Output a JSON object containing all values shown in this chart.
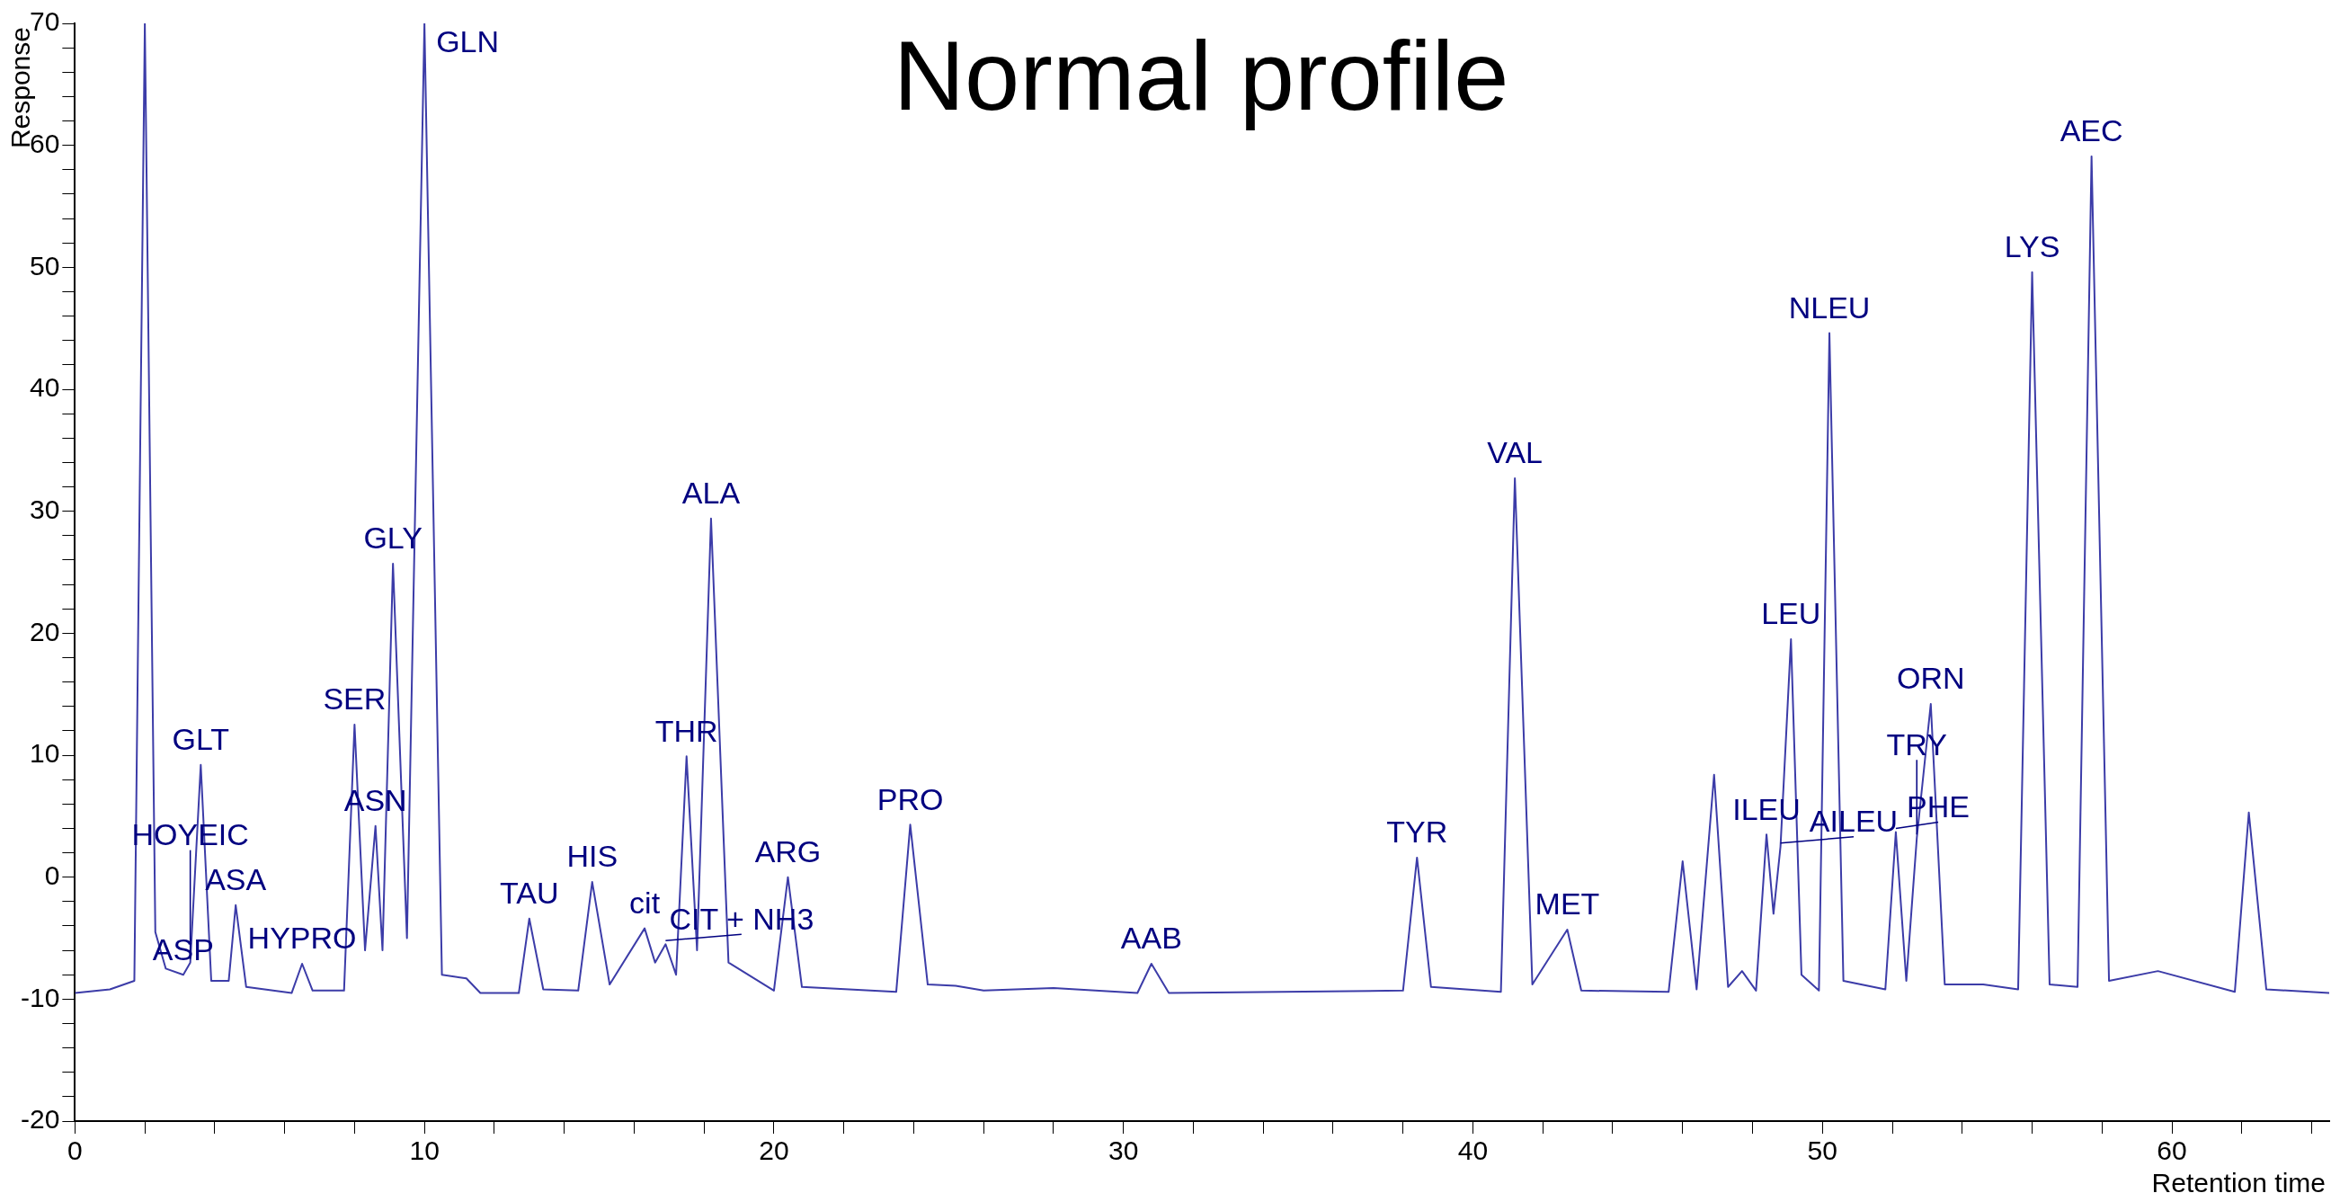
{
  "chart_data": {
    "type": "line",
    "title": "Normal profile",
    "xlabel": "Retention time",
    "ylabel": "Response",
    "xlim": [
      0,
      64.5
    ],
    "ylim": [
      -20,
      70
    ],
    "xticks": [
      0,
      {
        "value": 2,
        "label": null
      },
      {
        "value": 4,
        "label": null
      },
      {
        "value": 6,
        "label": null
      },
      {
        "value": 8,
        "label": null
      },
      10,
      {
        "value": 12,
        "label": null
      },
      {
        "value": 14,
        "label": null
      },
      {
        "value": 16,
        "label": null
      },
      {
        "value": 18,
        "label": null
      },
      20,
      {
        "value": 22,
        "label": null
      },
      {
        "value": 24,
        "label": null
      },
      {
        "value": 26,
        "label": null
      },
      {
        "value": 28,
        "label": null
      },
      30,
      {
        "value": 32,
        "label": null
      },
      {
        "value": 34,
        "label": null
      },
      {
        "value": 36,
        "label": null
      },
      {
        "value": 38,
        "label": null
      },
      40,
      {
        "value": 42,
        "label": null
      },
      {
        "value": 44,
        "label": null
      },
      {
        "value": 46,
        "label": null
      },
      {
        "value": 48,
        "label": null
      },
      50,
      {
        "value": 52,
        "label": null
      },
      {
        "value": 54,
        "label": null
      },
      {
        "value": 56,
        "label": null
      },
      {
        "value": 58,
        "label": null
      },
      60,
      {
        "value": 62,
        "label": null
      },
      {
        "value": 64,
        "label": null
      }
    ],
    "yticks": [
      -20,
      {
        "value": -18,
        "label": null
      },
      {
        "value": -16,
        "label": null
      },
      {
        "value": -14,
        "label": null
      },
      {
        "value": -12,
        "label": null
      },
      -10,
      {
        "value": -8,
        "label": null
      },
      {
        "value": -6,
        "label": null
      },
      {
        "value": -4,
        "label": null
      },
      {
        "value": -2,
        "label": null
      },
      0,
      {
        "value": 2,
        "label": null
      },
      {
        "value": 4,
        "label": null
      },
      {
        "value": 6,
        "label": null
      },
      {
        "value": 8,
        "label": null
      },
      10,
      {
        "value": 12,
        "label": null
      },
      {
        "value": 14,
        "label": null
      },
      {
        "value": 16,
        "label": null
      },
      {
        "value": 18,
        "label": null
      },
      20,
      {
        "value": 22,
        "label": null
      },
      {
        "value": 24,
        "label": null
      },
      {
        "value": 26,
        "label": null
      },
      {
        "value": 28,
        "label": null
      },
      30,
      {
        "value": 32,
        "label": null
      },
      {
        "value": 34,
        "label": null
      },
      {
        "value": 36,
        "label": null
      },
      {
        "value": 38,
        "label": null
      },
      40,
      {
        "value": 42,
        "label": null
      },
      {
        "value": 44,
        "label": null
      },
      {
        "value": 46,
        "label": null
      },
      {
        "value": 48,
        "label": null
      },
      50,
      {
        "value": 52,
        "label": null
      },
      {
        "value": 54,
        "label": null
      },
      {
        "value": 56,
        "label": null
      },
      {
        "value": 58,
        "label": null
      },
      60,
      {
        "value": 62,
        "label": null
      },
      {
        "value": 64,
        "label": null
      },
      {
        "value": 66,
        "label": null
      },
      {
        "value": 68,
        "label": null
      },
      70
    ],
    "grid": false,
    "legend": false,
    "marker": "none",
    "line_style": "solid",
    "series": [
      {
        "color": "#3c3ca8",
        "x": [
          0,
          1.0,
          1.7,
          2.0,
          2.3,
          2.6,
          3.1,
          3.3,
          3.6,
          3.9,
          4.4,
          4.6,
          4.9,
          6.2,
          6.5,
          6.8,
          7.7,
          8.0,
          8.3,
          8.6,
          8.8,
          9.1,
          9.5,
          10.0,
          10.5,
          11.2,
          11.6,
          12.7,
          13.0,
          13.4,
          14.4,
          14.8,
          15.3,
          16.3,
          16.6,
          16.9,
          17.2,
          17.5,
          17.8,
          18.2,
          18.7,
          20.0,
          20.4,
          20.8,
          23.5,
          23.9,
          24.4,
          25.2,
          26.0,
          28.0,
          30.4,
          30.8,
          31.3,
          38.0,
          38.4,
          38.8,
          40.8,
          41.2,
          41.7,
          42.7,
          43.1,
          45.6,
          46.0,
          46.4,
          46.9,
          47.3,
          47.7,
          48.1,
          48.4,
          48.6,
          48.8,
          49.1,
          49.4,
          49.9,
          50.2,
          50.6,
          51.8,
          52.1,
          52.4,
          52.7,
          53.1,
          53.5,
          54.6,
          55.6,
          56.0,
          56.5,
          57.3,
          57.7,
          58.2,
          59.6,
          61.8,
          62.2,
          62.7,
          64.5
        ],
        "values": [
          -9.5,
          -9.2,
          -8.5,
          70,
          -4.5,
          -7.5,
          -8.0,
          -7.0,
          9.2,
          -8.5,
          -8.5,
          -2.3,
          -9.0,
          -9.5,
          -7.1,
          -9.3,
          -9.3,
          12.5,
          -6,
          4.2,
          -6,
          25.7,
          -5,
          70,
          -8,
          -8.3,
          -9.5,
          -9.5,
          -3.4,
          -9.2,
          -9.3,
          -0.4,
          -8.8,
          -4.2,
          -7,
          -5.5,
          -8,
          9.9,
          -6,
          29.4,
          -7,
          -9.3,
          0,
          -9.0,
          -9.4,
          4.3,
          -8.8,
          -8.9,
          -9.3,
          -9.1,
          -9.5,
          -7.1,
          -9.5,
          -9.3,
          1.6,
          -9.0,
          -9.4,
          32.7,
          -8.8,
          -4.3,
          -9.3,
          -9.4,
          1.3,
          -9.2,
          8.4,
          -9.0,
          -7.7,
          -9.3,
          3.5,
          -3,
          2.5,
          19.5,
          -8,
          -9.3,
          44.6,
          -8.5,
          -9.2,
          3.7,
          -8.5,
          3.2,
          14.2,
          -8.8,
          -8.8,
          -9.2,
          49.6,
          -8.8,
          -9.0,
          59.1,
          -8.5,
          -7.7,
          -9.4,
          5.3,
          -9.2,
          -9.5
        ]
      }
    ],
    "annotations": [
      {
        "text": "GLN",
        "x": 10.0,
        "y": 70
      },
      {
        "text": "GLY",
        "x": 9.1,
        "y": 25.7
      },
      {
        "text": "SER",
        "x": 8.0,
        "y": 12.5
      },
      {
        "text": "GLT",
        "x": 3.6,
        "y": 9.2
      },
      {
        "text": "ASN",
        "x": 8.6,
        "y": 4.2
      },
      {
        "text": "ASA",
        "x": 4.6,
        "y": -2.3
      },
      {
        "text": "HYPRO",
        "x": 6.5,
        "y": -7.1
      },
      {
        "text": "ASP",
        "x": 3.1,
        "y": -8.0
      },
      {
        "text": "HOYEIC",
        "x": 3.3,
        "y": -7.0
      },
      {
        "text": "TAU",
        "x": 13.0,
        "y": -3.4
      },
      {
        "text": "HIS",
        "x": 14.8,
        "y": -0.4
      },
      {
        "text": "cit",
        "x": 16.3,
        "y": -4.2
      },
      {
        "text": "CIT + NH3",
        "x": 16.9,
        "y": -5.5
      },
      {
        "text": "THR",
        "x": 17.5,
        "y": 9.9
      },
      {
        "text": "ALA",
        "x": 18.2,
        "y": 29.4
      },
      {
        "text": "ARG",
        "x": 20.4,
        "y": 0
      },
      {
        "text": "PRO",
        "x": 23.9,
        "y": 4.3
      },
      {
        "text": "AAB",
        "x": 30.8,
        "y": -7.1
      },
      {
        "text": "TYR",
        "x": 38.4,
        "y": 1.6
      },
      {
        "text": "VAL",
        "x": 41.2,
        "y": 32.7
      },
      {
        "text": "MET",
        "x": 42.7,
        "y": -4.3
      },
      {
        "text": "ILEU",
        "x": 48.4,
        "y": 3.5
      },
      {
        "text": "AILEU",
        "x": 48.8,
        "y": 2.5
      },
      {
        "text": "LEU",
        "x": 49.1,
        "y": 19.5
      },
      {
        "text": "NLEU",
        "x": 50.2,
        "y": 44.6
      },
      {
        "text": "PHE",
        "x": 52.1,
        "y": 3.7
      },
      {
        "text": "TRY",
        "x": 52.7,
        "y": 3.2
      },
      {
        "text": "ORN",
        "x": 53.1,
        "y": 14.2
      },
      {
        "text": "LYS",
        "x": 56.0,
        "y": 49.6
      },
      {
        "text": "AEC",
        "x": 57.7,
        "y": 59.1
      }
    ]
  }
}
